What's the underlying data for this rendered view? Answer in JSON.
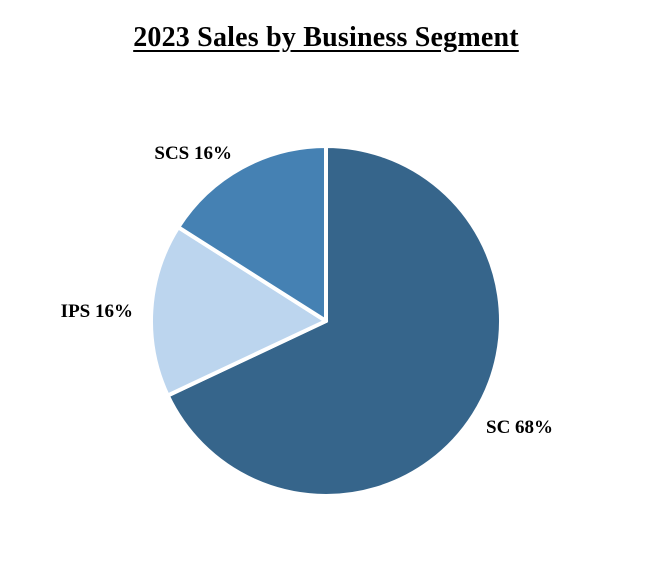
{
  "chart_data": {
    "type": "pie",
    "title": "2023 Sales by Business Segment",
    "start_angle_deg": 0,
    "direction": "clockwise",
    "slices": [
      {
        "name": "SC",
        "value": 68,
        "label": "SC 68%",
        "color": "#36658b"
      },
      {
        "name": "IPS",
        "value": 16,
        "label": "IPS 16%",
        "color": "#bcd5ee"
      },
      {
        "name": "SCS",
        "value": 16,
        "label": "SCS 16%",
        "color": "#4581b3"
      }
    ],
    "separator_color": "#ffffff"
  }
}
